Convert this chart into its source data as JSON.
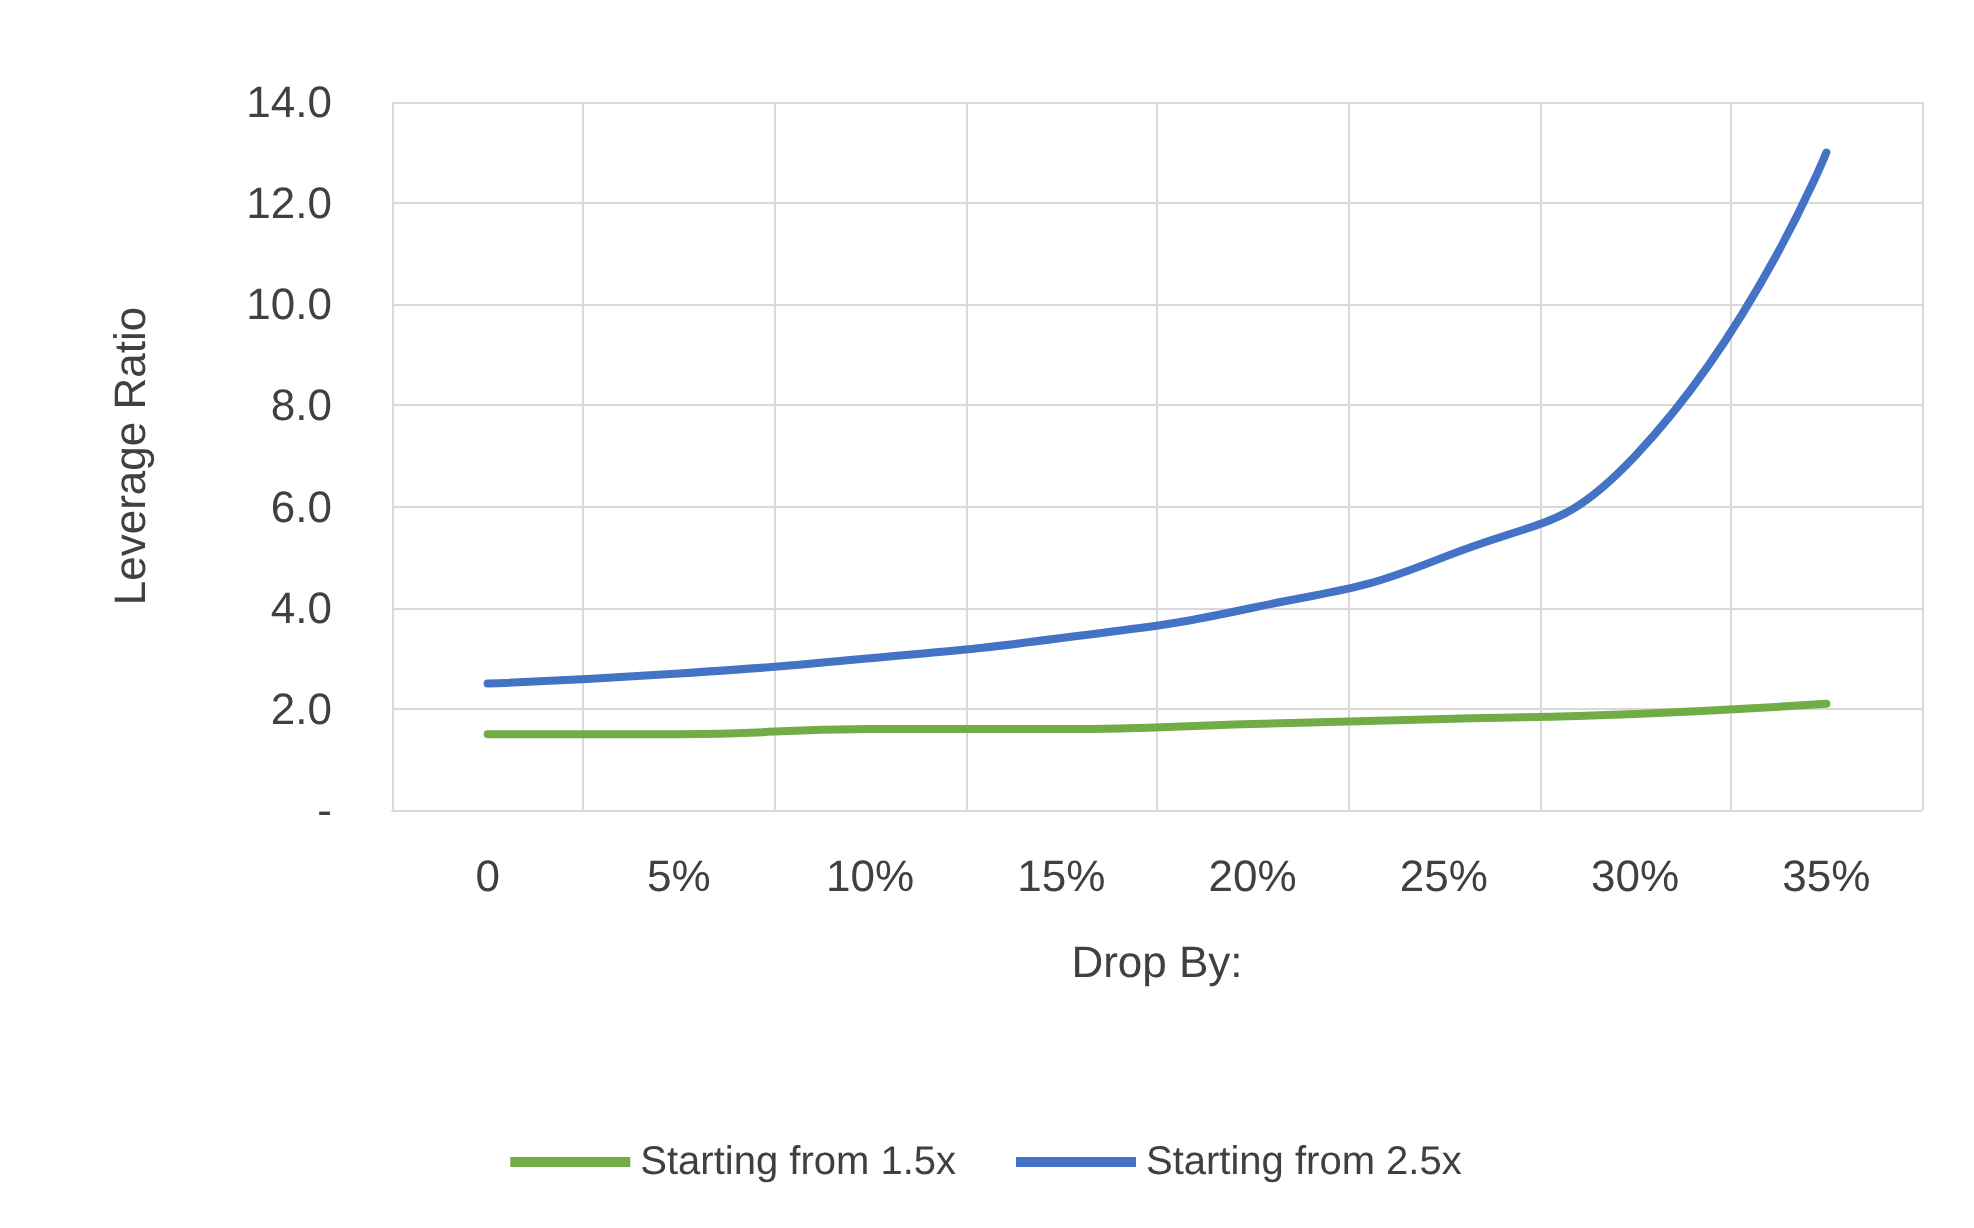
{
  "chart_data": {
    "type": "line",
    "xlabel": "Drop By:",
    "ylabel": "Leverage Ratio",
    "categories": [
      "0",
      "5%",
      "10%",
      "15%",
      "20%",
      "25%",
      "30%",
      "35%"
    ],
    "series": [
      {
        "name": "Starting from 1.5x",
        "color": "#70ad47",
        "values": [
          1.5,
          1.5,
          1.6,
          1.6,
          1.7,
          1.8,
          1.9,
          2.1
        ]
      },
      {
        "name": "Starting from 2.5x",
        "color": "#4472c4",
        "values": [
          2.5,
          2.7,
          3.0,
          3.4,
          4.0,
          5.0,
          7.0,
          13.0
        ]
      }
    ],
    "ylim": [
      0,
      14
    ],
    "yticks": [
      {
        "value": 0,
        "label": "-"
      },
      {
        "value": 2,
        "label": "2.0"
      },
      {
        "value": 4,
        "label": "4.0"
      },
      {
        "value": 6,
        "label": "6.0"
      },
      {
        "value": 8,
        "label": "8.0"
      },
      {
        "value": 10,
        "label": "10.0"
      },
      {
        "value": 12,
        "label": "12.0"
      },
      {
        "value": 14,
        "label": "14.0"
      }
    ],
    "grid": true,
    "legend": "bottom",
    "marker": "none",
    "line_style": "solid"
  }
}
